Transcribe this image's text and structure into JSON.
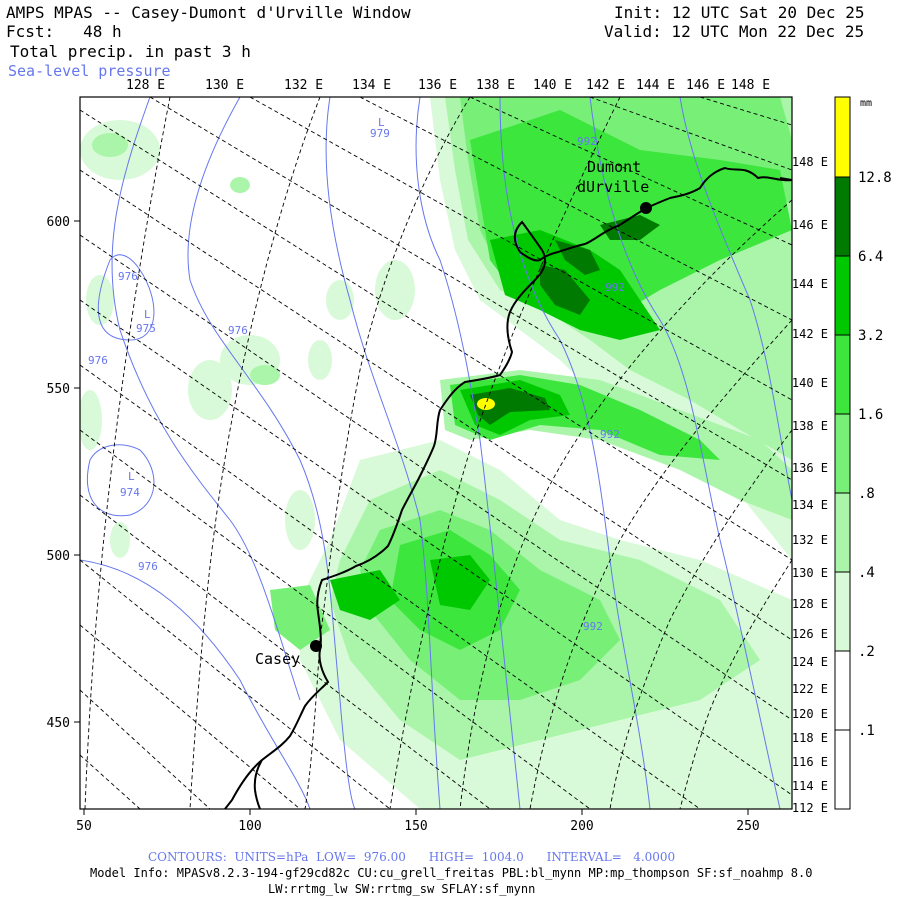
{
  "header": {
    "title": "AMPS MPAS -- Casey-Dumont d'Urville Window",
    "forecast_label": "Fcst:",
    "forecast_value": "48 h",
    "field": "Total precip. in past 3 h",
    "overlay": "Sea-level pressure",
    "init": "Init: 12 UTC Sat 20 Dec 25",
    "valid": "Valid: 12 UTC Mon 22 Dec 25"
  },
  "map": {
    "top_lon_labels": [
      "128 E",
      "130 E",
      "132 E",
      "134 E",
      "136 E",
      "138 E",
      "140 E",
      "142 E",
      "144 E",
      "146 E",
      "148 E"
    ],
    "right_lon_labels": [
      "148 E",
      "146 E",
      "144 E",
      "142 E",
      "140 E",
      "138 E",
      "136 E",
      "134 E",
      "132 E",
      "130 E",
      "128 E",
      "126 E",
      "124 E",
      "122 E",
      "120 E",
      "118 E",
      "116 E",
      "114 E",
      "112 E"
    ],
    "x_ticks": [
      "50",
      "100",
      "150",
      "200",
      "250"
    ],
    "y_ticks": [
      "600",
      "550",
      "500",
      "450"
    ],
    "stations": [
      {
        "name": "Casey"
      },
      {
        "name_line1": "Dumont",
        "name_line2": "dUrville"
      }
    ],
    "isobar_labels": [
      "979",
      "976",
      "975",
      "976",
      "976",
      "974",
      "976",
      "992",
      "992",
      "992",
      "992"
    ],
    "low_markers": [
      "L",
      "L",
      "L"
    ]
  },
  "legend": {
    "units": "mm",
    "labels": [
      "12.8",
      "6.4",
      "3.2",
      "1.6",
      ".8",
      ".4",
      ".2",
      ".1"
    ],
    "colors": [
      "#ffff00",
      "#007a00",
      "#00c800",
      "#3ce63c",
      "#78f078",
      "#aaf5aa",
      "#d8fad8",
      "#ffffff"
    ]
  },
  "footer": {
    "contours": "CONTOURS:  UNITS=hPa  LOW=  976.00      HIGH=  1004.0      INTERVAL=   4.0000",
    "model_info": "Model Info: MPASv8.2.3-194-gf29cd82c CU:cu_grell_freitas PBL:bl_mynn MP:mp_thompson SF:sf_noahmp 8.0",
    "model_info2": "LW:rrtmg_lw SW:rrtmg_sw SFLAY:sf_mynn"
  },
  "colors": {
    "isobar": "#6677ee",
    "footer_contours": "#6677ee",
    "overlay_text": "#6677ee"
  }
}
